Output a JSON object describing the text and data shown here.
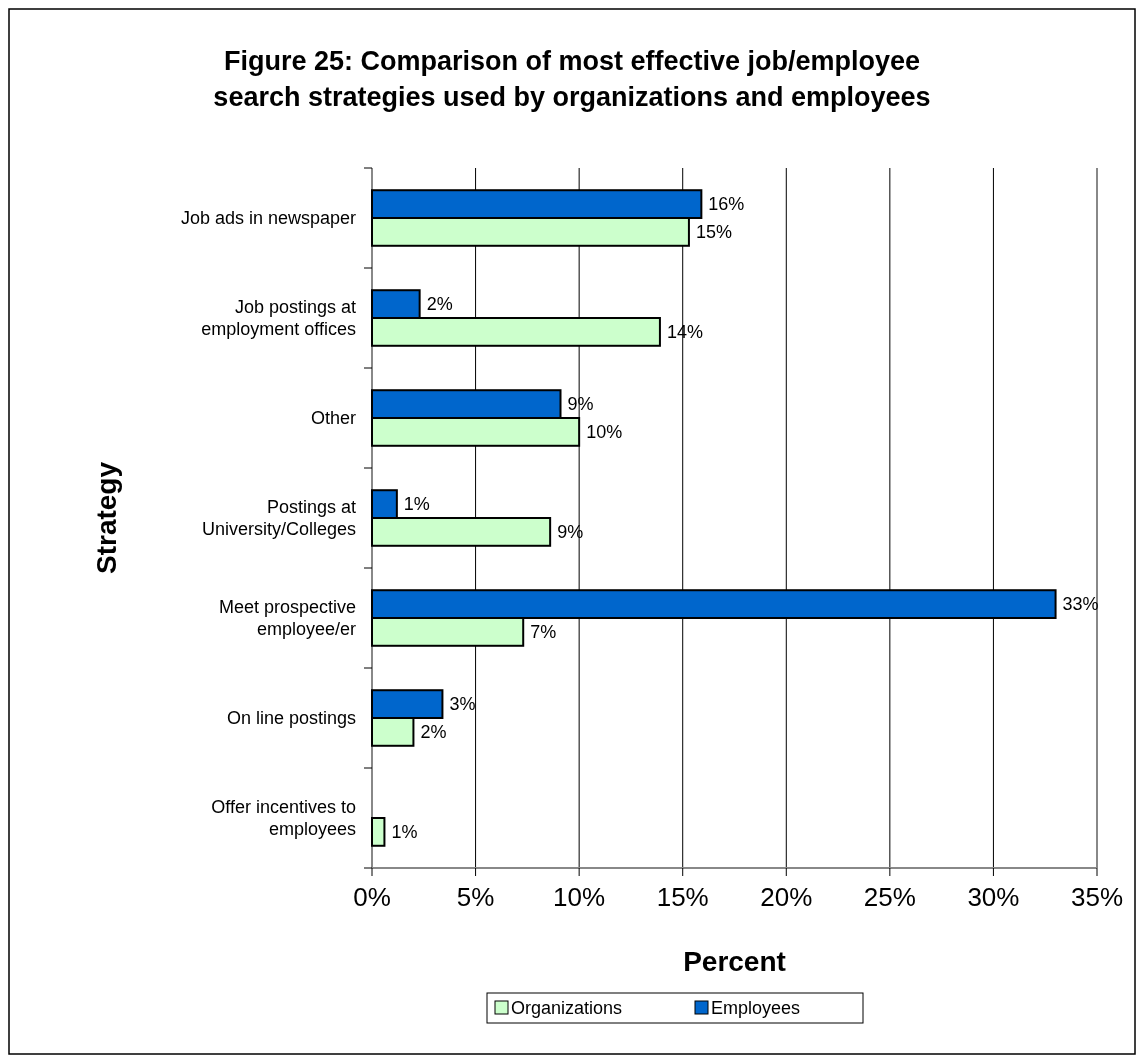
{
  "chart_data": {
    "type": "bar",
    "orientation": "horizontal",
    "title": "Figure 25:  Comparison of most effective job/employee search strategies used by organizations and employees",
    "xlabel": "Percent",
    "ylabel": "Strategy",
    "categories": [
      "Job ads in newspaper",
      "Job postings at employment offices",
      "Other",
      "Postings at University/Colleges",
      "Meet prospective employee/er",
      "On line postings",
      "Offer incentives to employees"
    ],
    "series": [
      {
        "name": "Organizations",
        "color": "#ccffcc",
        "values": [
          15.3,
          13.9,
          10.0,
          8.6,
          7.3,
          2.0,
          0.6
        ],
        "value_labels": [
          "15%",
          "14%",
          "10%",
          "9%",
          "7%",
          "2%",
          "1%"
        ]
      },
      {
        "name": "Employees",
        "color": "#0066cc",
        "values": [
          15.9,
          2.3,
          9.1,
          1.2,
          33.0,
          3.4,
          null
        ],
        "value_labels": [
          "16%",
          "2%",
          "9%",
          "1%",
          "33%",
          "3%",
          null
        ]
      }
    ],
    "xlim": [
      0,
      35
    ],
    "xticks": [
      {
        "value": 0,
        "label": "0%"
      },
      {
        "value": 5,
        "label": "5%"
      },
      {
        "value": 10,
        "label": "10%"
      },
      {
        "value": 15,
        "label": "15%"
      },
      {
        "value": 20,
        "label": "20%"
      },
      {
        "value": 25,
        "label": "25%"
      },
      {
        "value": 30,
        "label": "30%"
      },
      {
        "value": 35,
        "label": "35%"
      }
    ],
    "grid": "x",
    "legend": "bottom"
  }
}
